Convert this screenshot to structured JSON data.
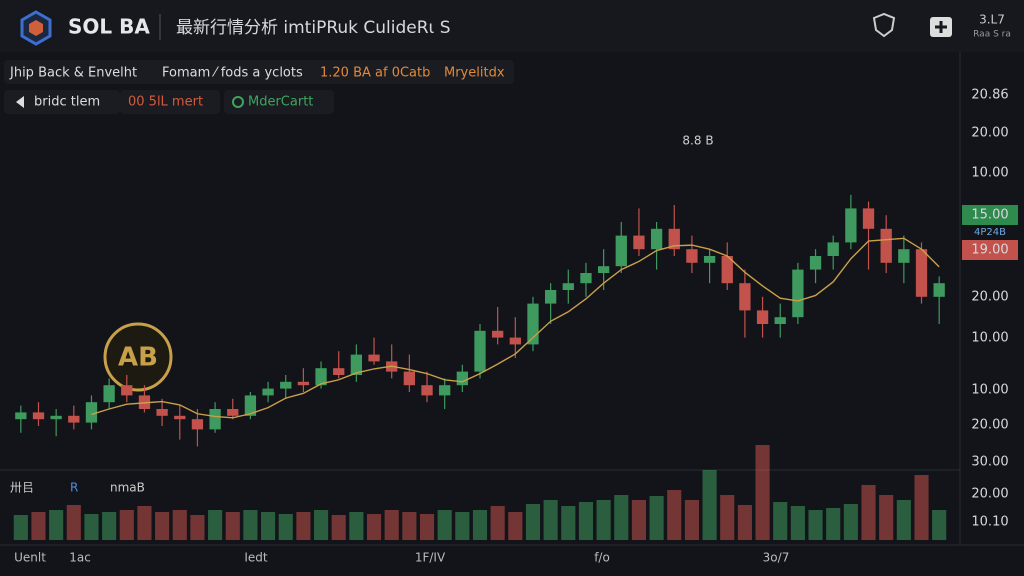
{
  "header": {
    "brand": "SOL BA",
    "title": "最新行情分析 imtiPRuk CulideRι S",
    "corner_top": "3.L7",
    "corner_bottom": "Raa S ra"
  },
  "toolbar": {
    "row1": [
      "Jhip Back & Envelht",
      "Fomam ⁄ fods a yclots",
      "1.20 BA af 0Catb",
      "Mryelitdx"
    ],
    "row2": [
      "bridc tlem",
      "00 5lL mert",
      "MderCartt"
    ]
  },
  "price_axis_labels": [
    "20.86",
    "20.00",
    "10.00",
    "15.00",
    "4P24B",
    "19.00",
    "20.00",
    "10.00",
    "10.00",
    "20.00",
    "30.00",
    "20.00",
    "10.10"
  ],
  "annotation": "8.8 B",
  "watermark": "AB",
  "volume_legend": [
    "卅㠯",
    "R",
    "nmaB"
  ],
  "time_labels": [
    "Uenlt",
    "1ac",
    "Iedt",
    "1F/IV",
    "f/o",
    "3o/7"
  ],
  "chart_data": {
    "type": "candlestick",
    "ylim": [
      0,
      100
    ],
    "volume_ylim": [
      0,
      100
    ],
    "up_color": "#3e9a5e",
    "down_color": "#c4524c",
    "ma_color": "#c9a04a",
    "open": [
      12,
      14,
      12,
      13,
      11,
      17,
      22,
      19,
      15,
      13,
      12,
      9,
      15,
      13,
      19,
      21,
      23,
      22,
      27,
      25,
      31,
      29,
      26,
      22,
      19,
      22,
      26,
      38,
      36,
      34,
      46,
      50,
      52,
      55,
      57,
      66,
      62,
      68,
      62,
      58,
      60,
      52,
      44,
      40,
      42,
      56,
      60,
      64,
      74,
      68,
      58,
      62,
      48
    ],
    "high": [
      16,
      17,
      15,
      16,
      19,
      24,
      25,
      22,
      18,
      16,
      15,
      17,
      18,
      20,
      23,
      25,
      27,
      29,
      32,
      34,
      36,
      34,
      31,
      26,
      24,
      28,
      40,
      45,
      42,
      48,
      52,
      56,
      58,
      62,
      70,
      74,
      70,
      75,
      66,
      62,
      64,
      56,
      48,
      46,
      58,
      62,
      66,
      78,
      76,
      72,
      66,
      64,
      54
    ],
    "low": [
      8,
      10,
      7,
      9,
      9,
      15,
      17,
      14,
      10,
      6,
      4,
      8,
      12,
      12,
      17,
      18,
      20,
      21,
      24,
      23,
      28,
      24,
      20,
      17,
      15,
      20,
      24,
      34,
      30,
      32,
      40,
      46,
      48,
      50,
      55,
      60,
      56,
      60,
      55,
      52,
      50,
      36,
      36,
      36,
      40,
      52,
      56,
      62,
      56,
      55,
      52,
      46,
      40
    ],
    "close": [
      14,
      12,
      13,
      11,
      17,
      22,
      19,
      15,
      13,
      12,
      9,
      15,
      13,
      19,
      21,
      23,
      22,
      27,
      25,
      31,
      29,
      26,
      22,
      19,
      22,
      26,
      38,
      36,
      34,
      46,
      50,
      52,
      55,
      57,
      66,
      62,
      68,
      62,
      58,
      60,
      52,
      44,
      40,
      42,
      56,
      60,
      64,
      74,
      68,
      58,
      62,
      48,
      52
    ],
    "ma": [
      null,
      null,
      null,
      null,
      13.4,
      15,
      16.4,
      16.8,
      17.2,
      16.2,
      13.6,
      12.8,
      12.4,
      13.6,
      15.4,
      18.2,
      19.6,
      22.4,
      23.6,
      25.6,
      26.8,
      27.6,
      26.6,
      25.4,
      23.6,
      23,
      25.4,
      28.2,
      31.2,
      36,
      40.8,
      43.6,
      47.4,
      52,
      56,
      58.4,
      61.6,
      63,
      63.2,
      62,
      60,
      55.2,
      51.2,
      47.6,
      46.8,
      48.4,
      52.4,
      59.2,
      64.4,
      64.8,
      65.2,
      62,
      56.8
    ],
    "volume": [
      25,
      28,
      30,
      35,
      26,
      28,
      30,
      34,
      28,
      30,
      25,
      30,
      28,
      30,
      28,
      26,
      28,
      30,
      25,
      28,
      26,
      30,
      28,
      26,
      30,
      28,
      30,
      34,
      28,
      36,
      40,
      34,
      38,
      40,
      45,
      40,
      44,
      50,
      40,
      70,
      45,
      35,
      95,
      38,
      34,
      30,
      32,
      36,
      55,
      45,
      40,
      65,
      30
    ]
  }
}
